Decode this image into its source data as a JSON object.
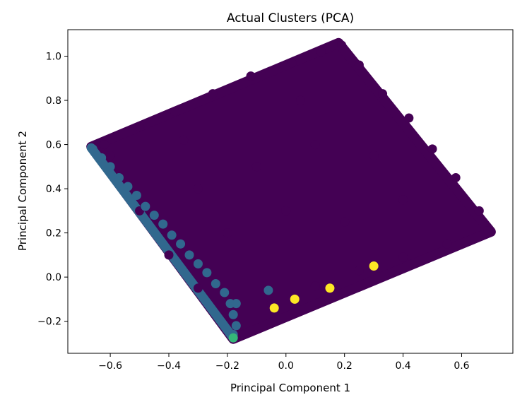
{
  "chart_data": {
    "type": "scatter",
    "title": "Actual Clusters (PCA)",
    "xlabel": "Principal Component 1",
    "ylabel": "Principal Component 2",
    "xlim": [
      -0.745,
      0.775
    ],
    "ylim": [
      -0.345,
      1.12
    ],
    "xticks": [
      -0.6,
      -0.4,
      -0.2,
      0.0,
      0.2,
      0.4,
      0.6
    ],
    "xtick_labels": [
      "−0.6",
      "−0.4",
      "−0.2",
      "0.0",
      "0.2",
      "0.4",
      "0.6"
    ],
    "yticks": [
      -0.2,
      0.0,
      0.2,
      0.4,
      0.6,
      0.8,
      1.0
    ],
    "ytick_labels": [
      "−0.2",
      "0.0",
      "0.2",
      "0.4",
      "0.6",
      "0.8",
      "1.0"
    ],
    "grid": false,
    "legend": "none",
    "region": {
      "color": "#440154",
      "vertices": [
        [
          -0.665,
          0.59
        ],
        [
          0.18,
          1.06
        ],
        [
          0.7,
          0.205
        ],
        [
          -0.18,
          -0.28
        ]
      ]
    },
    "series": [
      {
        "color": "#440154",
        "points": [
          [
            -0.62,
            0.6
          ],
          [
            -0.5,
            0.68
          ],
          [
            -0.38,
            0.75
          ],
          [
            -0.25,
            0.83
          ],
          [
            -0.12,
            0.91
          ],
          [
            0.02,
            0.97
          ],
          [
            0.12,
            1.02
          ],
          [
            0.19,
            1.05
          ],
          [
            0.25,
            0.96
          ],
          [
            0.33,
            0.83
          ],
          [
            0.42,
            0.72
          ],
          [
            0.5,
            0.58
          ],
          [
            0.58,
            0.45
          ],
          [
            0.66,
            0.3
          ],
          [
            0.69,
            0.21
          ],
          [
            0.55,
            0.15
          ],
          [
            0.4,
            0.09
          ],
          [
            0.25,
            0.03
          ],
          [
            0.1,
            -0.04
          ],
          [
            -0.05,
            -0.12
          ],
          [
            -0.17,
            -0.27
          ],
          [
            -0.3,
            -0.05
          ],
          [
            -0.4,
            0.1
          ],
          [
            -0.5,
            0.3
          ],
          [
            -0.6,
            0.55
          ],
          [
            -0.3,
            0.4
          ],
          [
            -0.1,
            0.5
          ],
          [
            0.1,
            0.6
          ],
          [
            0.3,
            0.55
          ],
          [
            0.0,
            0.3
          ],
          [
            0.2,
            0.25
          ],
          [
            -0.2,
            0.2
          ],
          [
            0.4,
            0.35
          ],
          [
            -0.35,
            0.62
          ],
          [
            0.05,
            0.8
          ]
        ]
      },
      {
        "color": "#31688e",
        "points": [
          [
            -0.66,
            0.58
          ],
          [
            -0.63,
            0.54
          ],
          [
            -0.6,
            0.5
          ],
          [
            -0.57,
            0.45
          ],
          [
            -0.54,
            0.41
          ],
          [
            -0.51,
            0.37
          ],
          [
            -0.48,
            0.32
          ],
          [
            -0.45,
            0.28
          ],
          [
            -0.42,
            0.24
          ],
          [
            -0.39,
            0.19
          ],
          [
            -0.36,
            0.15
          ],
          [
            -0.33,
            0.1
          ],
          [
            -0.3,
            0.06
          ],
          [
            -0.27,
            0.02
          ],
          [
            -0.24,
            -0.03
          ],
          [
            -0.21,
            -0.07
          ],
          [
            -0.19,
            -0.12
          ],
          [
            -0.18,
            -0.17
          ],
          [
            -0.17,
            -0.22
          ],
          [
            -0.18,
            -0.26
          ],
          [
            -0.06,
            -0.06
          ],
          [
            -0.17,
            -0.12
          ]
        ]
      },
      {
        "color": "#35b779",
        "points": [
          [
            -0.18,
            -0.275
          ]
        ]
      },
      {
        "color": "#fde725",
        "points": [
          [
            -0.04,
            -0.14
          ],
          [
            0.03,
            -0.1
          ],
          [
            0.15,
            -0.05
          ],
          [
            0.3,
            0.05
          ]
        ]
      }
    ]
  }
}
